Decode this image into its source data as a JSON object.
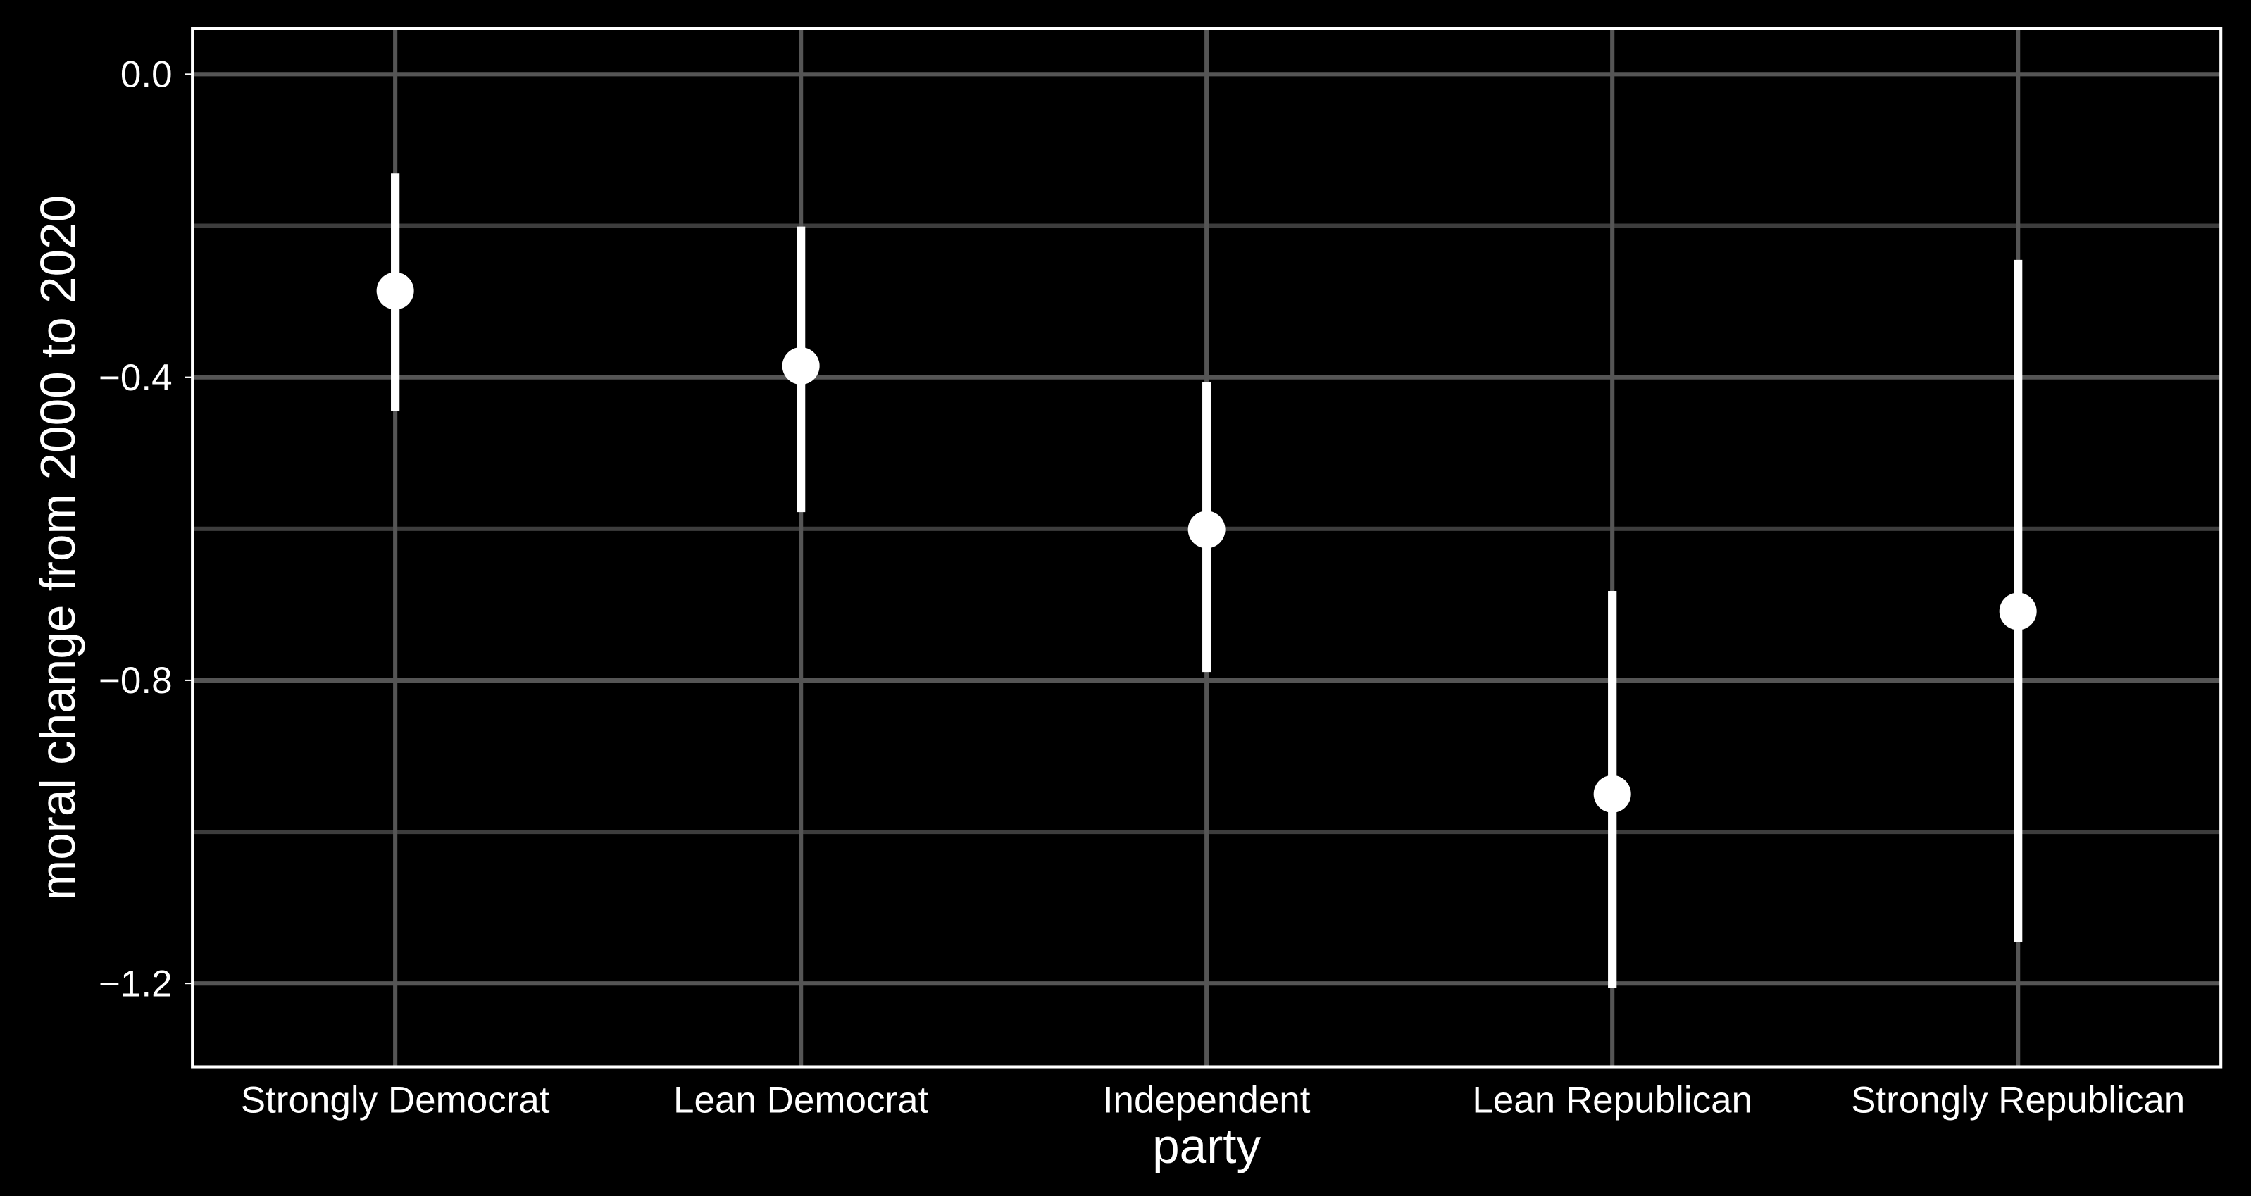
{
  "chart_data": {
    "type": "scatter",
    "subtype": "point-with-error-bars",
    "title": "",
    "xlabel": "party",
    "ylabel": "moral change from 2000 to 2020",
    "categories": [
      "Strongly Democrat",
      "Lean Democrat",
      "Independent",
      "Lean Republican",
      "Strongly Republican"
    ],
    "values": [
      -0.286,
      -0.385,
      -0.601,
      -0.95,
      -0.709
    ],
    "error_upper": [
      -0.131,
      -0.201,
      -0.406,
      -0.682,
      -0.245
    ],
    "error_lower": [
      -0.444,
      -0.578,
      -0.789,
      -1.206,
      -1.145
    ],
    "ylim": [
      -1.31,
      0.06
    ],
    "yticks": [
      0.0,
      -0.4,
      -0.8,
      -1.2
    ],
    "ytick_labels": [
      "0.0",
      "−0.4",
      "−0.8",
      "−1.2"
    ],
    "minor_gridlines": [
      -0.2,
      -0.6,
      -1.0
    ],
    "grid": true,
    "legend": "none",
    "colors": {
      "background": "#000000",
      "grid": "#555555",
      "marks": "#ffffff",
      "panel_border": "#ffffff"
    }
  }
}
